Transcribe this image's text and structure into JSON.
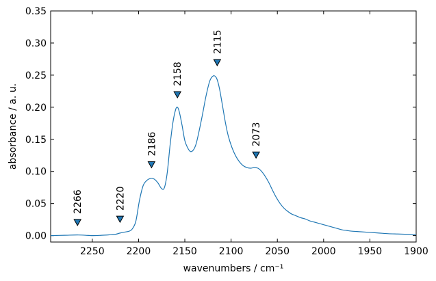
{
  "chart_data": {
    "type": "line",
    "title": "",
    "xlabel": "wavenumbers / cm⁻¹",
    "ylabel": "absorbance / a. u.",
    "xlim": [
      2295,
      1900
    ],
    "ylim": [
      -0.01,
      0.35
    ],
    "x_inverted": true,
    "grid": false,
    "legend": "none",
    "line_color": "#1f77b4",
    "marker_color": "#1f77b4",
    "xticks": [
      2250,
      2200,
      2150,
      2100,
      2050,
      2000,
      1950,
      1900
    ],
    "xtick_labels": [
      "2250",
      "2200",
      "2150",
      "2100",
      "2050",
      "2000",
      "1950",
      "1900"
    ],
    "yticks": [
      0.0,
      0.05,
      0.1,
      0.15,
      0.2,
      0.25,
      0.3,
      0.35
    ],
    "ytick_labels": [
      "0.00",
      "0.05",
      "0.10",
      "0.15",
      "0.20",
      "0.25",
      "0.30",
      "0.35"
    ],
    "series": [
      {
        "x": [
          2295,
          2280,
          2265,
          2250,
          2240,
          2232,
          2225,
          2220,
          2215,
          2210,
          2207,
          2203,
          2199,
          2195,
          2191,
          2187,
          2183,
          2179,
          2175,
          2172,
          2169,
          2166,
          2163,
          2160,
          2158,
          2156,
          2153,
          2150,
          2147,
          2144,
          2141,
          2138,
          2135,
          2131,
          2127,
          2123,
          2119,
          2116,
          2114,
          2112,
          2109,
          2106,
          2103,
          2099,
          2095,
          2091,
          2087,
          2083,
          2079,
          2075,
          2071,
          2067,
          2063,
          2059,
          2055,
          2051,
          2047,
          2043,
          2039,
          2035,
          2030,
          2025,
          2020,
          2015,
          2010,
          2005,
          2000,
          1995,
          1990,
          1985,
          1980,
          1975,
          1970,
          1960,
          1950,
          1940,
          1930,
          1920,
          1910,
          1900
        ],
        "y": [
          0.0,
          0.0005,
          0.001,
          0.0,
          0.0005,
          0.0012,
          0.002,
          0.004,
          0.0055,
          0.007,
          0.01,
          0.022,
          0.055,
          0.078,
          0.086,
          0.089,
          0.088,
          0.082,
          0.073,
          0.075,
          0.098,
          0.14,
          0.175,
          0.196,
          0.2,
          0.193,
          0.172,
          0.148,
          0.137,
          0.131,
          0.133,
          0.142,
          0.16,
          0.188,
          0.218,
          0.241,
          0.249,
          0.246,
          0.238,
          0.225,
          0.2,
          0.175,
          0.155,
          0.137,
          0.124,
          0.115,
          0.109,
          0.106,
          0.105,
          0.106,
          0.105,
          0.1,
          0.092,
          0.082,
          0.07,
          0.059,
          0.05,
          0.043,
          0.038,
          0.034,
          0.031,
          0.028,
          0.026,
          0.023,
          0.021,
          0.019,
          0.017,
          0.015,
          0.013,
          0.011,
          0.009,
          0.008,
          0.007,
          0.006,
          0.005,
          0.004,
          0.003,
          0.0025,
          0.002,
          0.0015
        ]
      }
    ],
    "peaks": [
      {
        "x": 2266,
        "y": 0.02,
        "label": "2266"
      },
      {
        "x": 2220,
        "y": 0.025,
        "label": "2220"
      },
      {
        "x": 2186,
        "y": 0.11,
        "label": "2186"
      },
      {
        "x": 2158,
        "y": 0.219,
        "label": "2158"
      },
      {
        "x": 2115,
        "y": 0.269,
        "label": "2115"
      },
      {
        "x": 2073,
        "y": 0.125,
        "label": "2073"
      }
    ]
  }
}
